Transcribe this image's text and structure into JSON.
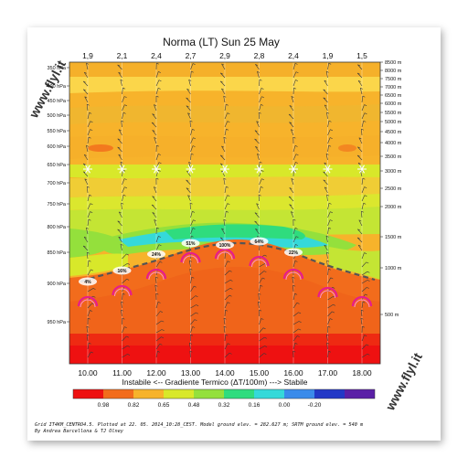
{
  "chart_data": {
    "type": "heatmap",
    "title": "Norma (LT) Sun 25 May",
    "x": [
      "10.00",
      "11.00",
      "12.00",
      "13.00",
      "14.00",
      "15.00",
      "16.00",
      "17.00",
      "18.00"
    ],
    "top_values": [
      "1,9",
      "2,1",
      "2,4",
      "2,7",
      "2,9",
      "2,8",
      "2,4",
      "1,9",
      "1,5"
    ],
    "pressure_ticks": [
      "350 hPa",
      "400 hPa",
      "450 hPa",
      "500 hPa",
      "550 hPa",
      "600 hPa",
      "650 hPa",
      "700 hPa",
      "750 hPa",
      "800 hPa",
      "850 hPa",
      "900 hPa",
      "950 hPa"
    ],
    "altitude_ticks": [
      "8500 m",
      "8000 m",
      "7500 m",
      "7000 m",
      "6500 m",
      "6000 m",
      "5500 m",
      "5000 m",
      "4500 m",
      "4000 m",
      "3500 m",
      "3000 m",
      "2500 m",
      "2000 m",
      "1500 m",
      "1000 m",
      "500 m"
    ],
    "cloud_labels": [
      {
        "time": "10.00",
        "text": "4%"
      },
      {
        "time": "11.00",
        "text": "16%"
      },
      {
        "time": "12.00",
        "text": "24%"
      },
      {
        "time": "13.00",
        "text": "51%"
      },
      {
        "time": "14.00",
        "text": "100%"
      },
      {
        "time": "15.00",
        "text": "64%"
      },
      {
        "time": "16.00",
        "text": "22%"
      }
    ],
    "colorbar": {
      "title": "Instabile <--    Gradiente Termico (ΔT/100m)    ---> Stabile",
      "colors": [
        "#ee1111",
        "#f26c1c",
        "#f7b32b",
        "#d8e82a",
        "#94e03c",
        "#2fdc7e",
        "#35d9d9",
        "#3a8bea",
        "#2238c6",
        "#5a1fa6"
      ],
      "ticks": [
        "0.98",
        "0.82",
        "0.65",
        "0.48",
        "0.32",
        "0.16",
        "0.00",
        "-0.20"
      ]
    },
    "footer_lines": [
      "Grid IT4KM_CENTRO4.5. Plotted at 22. 05. 2014_10:28_CEST. Model ground elev. = 282.627 m; SRTM ground elev. = 540 m",
      "By Andrea Barcellona & TJ Olney"
    ],
    "watermark": "www.flyl.it"
  }
}
